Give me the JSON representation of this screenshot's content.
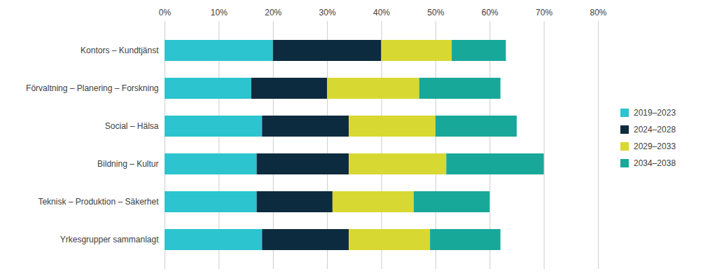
{
  "chart_data": {
    "type": "bar",
    "orientation": "horizontal",
    "stacked": true,
    "categories": [
      "Yrkesgrupper sammanlagt",
      "Teknisk – Produktion – Säkerhet",
      "Bildning – Kultur",
      "Social – Hälsa",
      "Förvaltning – Planering – Forskning",
      "Kontors – Kundtjänst"
    ],
    "series": [
      {
        "name": "2019–2023",
        "color": "#2BC4CF",
        "values": [
          18.0,
          17.0,
          17.0,
          18.0,
          16.0,
          20.0
        ]
      },
      {
        "name": "2024–2028",
        "color": "#0D2B3E",
        "values": [
          16.0,
          14.0,
          17.0,
          16.0,
          14.0,
          20.0
        ]
      },
      {
        "name": "2029–2033",
        "color": "#D8D832",
        "values": [
          15.0,
          15.0,
          18.0,
          16.0,
          17.0,
          13.0
        ]
      },
      {
        "name": "2034–2038",
        "color": "#18A89A",
        "values": [
          13.0,
          14.0,
          18.0,
          15.0,
          15.0,
          10.0
        ]
      }
    ],
    "xlim": [
      0,
      80
    ],
    "xticks": [
      {
        "value": 0,
        "label": "0%"
      },
      {
        "value": 10,
        "label": "10%"
      },
      {
        "value": 20,
        "label": "20%"
      },
      {
        "value": 30,
        "label": "30%"
      },
      {
        "value": 40,
        "label": "40%"
      },
      {
        "value": 50,
        "label": "50%"
      },
      {
        "value": 60,
        "label": "60%"
      },
      {
        "value": 70,
        "label": "70%"
      },
      {
        "value": 80,
        "label": "80%"
      }
    ],
    "grid": true,
    "legend": "right"
  }
}
